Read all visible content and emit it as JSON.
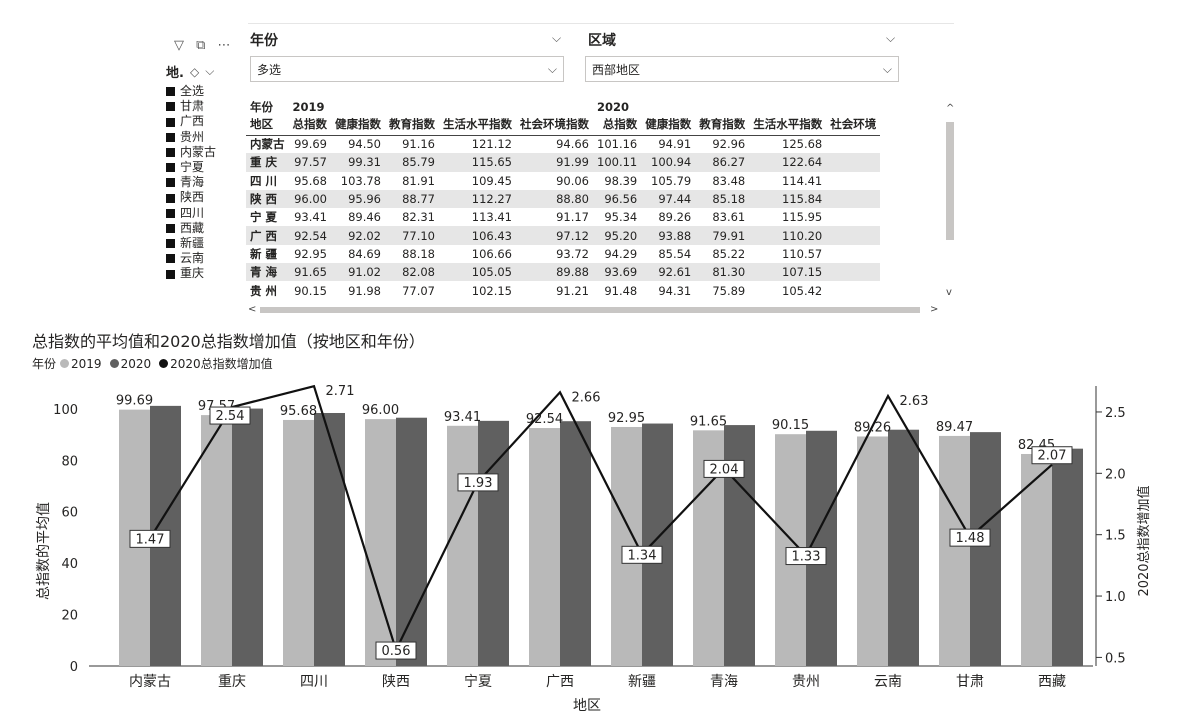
{
  "slicer": {
    "title": "地.",
    "items": [
      "全选",
      "甘肃",
      "广西",
      "贵州",
      "内蒙古",
      "宁夏",
      "青海",
      "陕西",
      "四川",
      "西藏",
      "新疆",
      "云南",
      "重庆"
    ]
  },
  "filters": {
    "year_label": "年份",
    "year_value": "多选",
    "region_label": "区域",
    "region_value": "西部地区"
  },
  "matrix": {
    "row_header_1": "年份",
    "row_header_2": "地区",
    "years": [
      "2019",
      "2020"
    ],
    "columns": [
      "总指数",
      "健康指数",
      "教育指数",
      "生活水平指数",
      "社会环境指数",
      "总指数",
      "健康指数",
      "教育指数",
      "生活水平指数",
      "社会环境"
    ],
    "rows": [
      {
        "region": "内蒙古",
        "values": [
          "99.69",
          "94.50",
          "91.16",
          "121.12",
          "94.66",
          "101.16",
          "94.91",
          "92.96",
          "125.68",
          ""
        ]
      },
      {
        "region": "重 庆",
        "values": [
          "97.57",
          "99.31",
          "85.79",
          "115.65",
          "91.99",
          "100.11",
          "100.94",
          "86.27",
          "122.64",
          ""
        ]
      },
      {
        "region": "四 川",
        "values": [
          "95.68",
          "103.78",
          "81.91",
          "109.45",
          "90.06",
          "98.39",
          "105.79",
          "83.48",
          "114.41",
          ""
        ]
      },
      {
        "region": "陕 西",
        "values": [
          "96.00",
          "95.96",
          "88.77",
          "112.27",
          "88.80",
          "96.56",
          "97.44",
          "85.18",
          "115.84",
          ""
        ]
      },
      {
        "region": "宁 夏",
        "values": [
          "93.41",
          "89.46",
          "82.31",
          "113.41",
          "91.17",
          "95.34",
          "89.26",
          "83.61",
          "115.95",
          ""
        ]
      },
      {
        "region": "广 西",
        "values": [
          "92.54",
          "92.02",
          "77.10",
          "106.43",
          "97.12",
          "95.20",
          "93.88",
          "79.91",
          "110.20",
          ""
        ]
      },
      {
        "region": "新 疆",
        "values": [
          "92.95",
          "84.69",
          "88.18",
          "106.66",
          "93.72",
          "94.29",
          "85.54",
          "85.22",
          "110.57",
          ""
        ]
      },
      {
        "region": "青 海",
        "values": [
          "91.65",
          "91.02",
          "82.08",
          "105.05",
          "89.88",
          "93.69",
          "92.61",
          "81.30",
          "107.15",
          ""
        ]
      },
      {
        "region": "贵 州",
        "values": [
          "90.15",
          "91.98",
          "77.07",
          "102.15",
          "91.21",
          "91.48",
          "94.31",
          "75.89",
          "105.42",
          ""
        ]
      }
    ]
  },
  "chart_data": {
    "type": "bar",
    "title": "总指数的平均值和2020总指数增加值（按地区和年份）",
    "legend_title": "年份",
    "xlabel": "地区",
    "ylabel": "总指数的平均值",
    "y2label": "2020总指数增加值",
    "categories": [
      "内蒙古",
      "重庆",
      "四川",
      "陕西",
      "宁夏",
      "广西",
      "新疆",
      "青海",
      "贵州",
      "云南",
      "甘肃",
      "西藏"
    ],
    "series": [
      {
        "name": "2019",
        "type": "bar",
        "color": "#b9b9b9",
        "values": [
          99.69,
          97.57,
          95.68,
          96.0,
          93.41,
          92.54,
          92.95,
          91.65,
          90.15,
          89.26,
          89.47,
          82.45
        ]
      },
      {
        "name": "2020",
        "type": "bar",
        "color": "#606060",
        "values": [
          101.16,
          100.11,
          98.39,
          96.56,
          95.34,
          95.2,
          94.29,
          93.69,
          91.48,
          91.89,
          90.95,
          84.52
        ]
      },
      {
        "name": "2020总指数增加值",
        "type": "line",
        "axis": "right",
        "color": "#111111",
        "values": [
          1.47,
          2.54,
          2.71,
          0.56,
          1.93,
          2.66,
          1.34,
          2.04,
          1.33,
          2.63,
          1.48,
          2.07
        ]
      }
    ],
    "ylim": [
      0,
      105
    ],
    "y_ticks": [
      "0",
      "20",
      "40",
      "60",
      "80",
      "100"
    ],
    "y2lim": [
      0.43,
      2.63
    ],
    "y2_ticks": [
      "0.5",
      "1.0",
      "1.5",
      "2.0",
      "2.5"
    ],
    "bar_labels_2019": [
      "99.69",
      "97.57",
      "95.68",
      "96.00",
      "93.41",
      "92.54",
      "92.95",
      "91.65",
      "90.15",
      "89.26",
      "89.47",
      "82.45"
    ],
    "line_labels": [
      "1.47",
      "2.54",
      "2.71",
      "0.56",
      "1.93",
      "2.66",
      "1.34",
      "2.04",
      "1.33",
      "2.63",
      "1.48",
      "2.07"
    ],
    "legend_placement": "top-left"
  }
}
